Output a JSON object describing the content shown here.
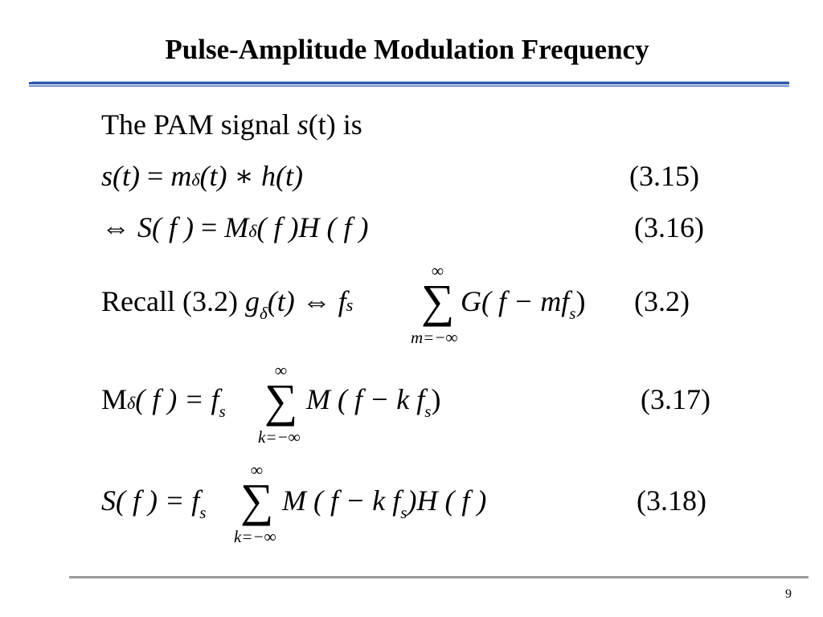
{
  "slide": {
    "title": "Pulse-Amplitude Modulation Frequency",
    "page_number": "9"
  },
  "lines": {
    "intro": {
      "text": "The PAM signal",
      "var": "s",
      "arg": "(t)",
      "tail": "is"
    },
    "eq315": {
      "lhs": "s(t)",
      "eq": " = ",
      "m": "m",
      "delta": "δ",
      "rest": "(t) ∗ h(t)",
      "num": "(3.15)"
    },
    "eq316": {
      "iff": "⇔",
      "lhs": "S( f )",
      "eq": " = ",
      "M": "M",
      "delta": "δ",
      "rest": "( f )H ( f )",
      "num": "(3.16)"
    },
    "recall": {
      "word": "Recall",
      "ref": "(3.2)",
      "g": "g",
      "g_sub": "δ",
      "g_arg": "(t)",
      "iff": "⇔",
      "fs": "f",
      "fs_sub": "s",
      "sum": "∑",
      "sum_top": "∞",
      "sum_bottom": "m=−∞",
      "term": "G( f − mf",
      "term_sub": "s",
      "term_end": ")",
      "num": "(3.2)"
    },
    "eq317": {
      "lhs_M": "M",
      "lhs_delta": "δ",
      "lhs_rest": "( f ) = ",
      "fs": "f",
      "fs_sub": "s",
      "sum": "∑",
      "sum_top": "∞",
      "sum_bottom": "k=−∞",
      "term": "M ( f − k f",
      "term_sub": "s",
      "term_end": ")",
      "num": "(3.17)"
    },
    "eq318": {
      "lhs": "S( f ) = ",
      "fs": "f",
      "fs_sub": "s",
      "sum": "∑",
      "sum_top": "∞",
      "sum_bottom": "k=−∞",
      "term": "M ( f − k f",
      "term_sub": "s",
      "term_end": ")H ( f )",
      "num": "(3.18)"
    }
  }
}
